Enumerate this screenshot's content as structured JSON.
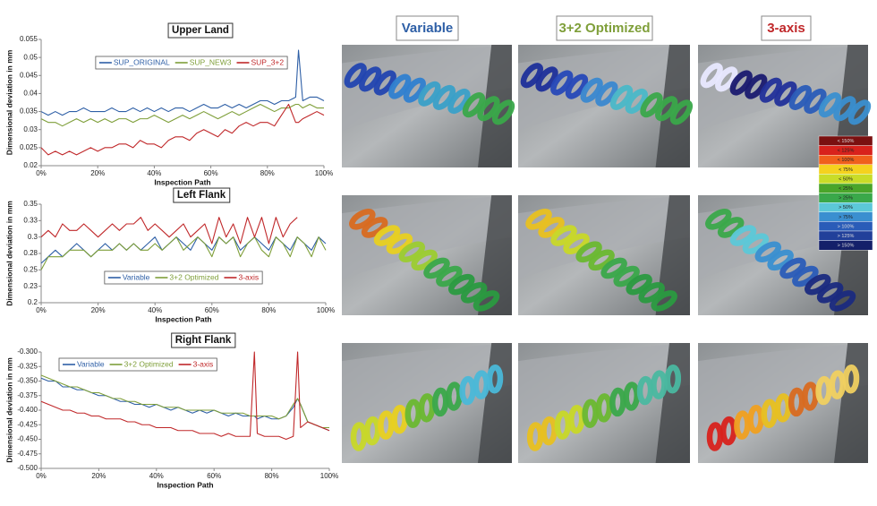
{
  "chart_data": [
    {
      "type": "line",
      "title": "Upper Land",
      "xlabel": "Inspection Path",
      "ylabel": "Dimensional deviation in mm",
      "x": [
        0,
        2.5,
        5,
        7.5,
        10,
        12.5,
        15,
        17.5,
        20,
        22.5,
        25,
        27.5,
        30,
        32.5,
        35,
        37.5,
        40,
        42.5,
        45,
        47.5,
        50,
        52.5,
        55,
        57.5,
        60,
        62.5,
        65,
        67.5,
        70,
        72.5,
        75,
        77.5,
        80,
        82.5,
        85,
        87.5,
        90,
        91,
        92.5,
        95,
        97.5,
        100
      ],
      "series": [
        {
          "name": "SUP_ORIGINAL",
          "color": "#2e5fa6",
          "values": [
            0.035,
            0.034,
            0.035,
            0.034,
            0.035,
            0.035,
            0.036,
            0.035,
            0.035,
            0.035,
            0.036,
            0.035,
            0.035,
            0.036,
            0.035,
            0.036,
            0.035,
            0.036,
            0.035,
            0.036,
            0.036,
            0.035,
            0.036,
            0.037,
            0.036,
            0.036,
            0.037,
            0.036,
            0.037,
            0.036,
            0.037,
            0.038,
            0.038,
            0.037,
            0.038,
            0.038,
            0.039,
            0.052,
            0.038,
            0.039,
            0.039,
            0.038
          ]
        },
        {
          "name": "SUP_NEW3",
          "color": "#7f9f3a",
          "values": [
            0.033,
            0.032,
            0.032,
            0.031,
            0.032,
            0.033,
            0.032,
            0.033,
            0.032,
            0.033,
            0.032,
            0.033,
            0.033,
            0.032,
            0.033,
            0.033,
            0.034,
            0.033,
            0.032,
            0.033,
            0.034,
            0.033,
            0.034,
            0.035,
            0.034,
            0.033,
            0.034,
            0.035,
            0.034,
            0.035,
            0.036,
            0.037,
            0.036,
            0.035,
            0.036,
            0.036,
            0.037,
            0.037,
            0.036,
            0.037,
            0.036,
            0.036
          ]
        },
        {
          "name": "SUP_3+2",
          "color": "#c0282a",
          "values": [
            0.025,
            0.023,
            0.024,
            0.023,
            0.024,
            0.023,
            0.024,
            0.025,
            0.024,
            0.025,
            0.025,
            0.026,
            0.026,
            0.025,
            0.027,
            0.026,
            0.026,
            0.025,
            0.027,
            0.028,
            0.028,
            0.027,
            0.029,
            0.03,
            0.029,
            0.028,
            0.03,
            0.029,
            0.031,
            0.032,
            0.031,
            0.032,
            0.032,
            0.031,
            0.034,
            0.037,
            0.032,
            0.032,
            0.033,
            0.034,
            0.035,
            0.034
          ]
        }
      ],
      "xlim": [
        0,
        100
      ],
      "xticks": [
        {
          "value": 0,
          "label": "0%"
        },
        {
          "value": 20,
          "label": "20%"
        },
        {
          "value": 40,
          "label": "40%"
        },
        {
          "value": 60,
          "label": "60%"
        },
        {
          "value": 80,
          "label": "80%"
        },
        {
          "value": 100,
          "label": "100%"
        }
      ],
      "ylim": [
        0.02,
        0.055
      ],
      "yticks": [
        0.02,
        0.025,
        0.03,
        0.035,
        0.04,
        0.045,
        0.05,
        0.055
      ],
      "legend": "upper center",
      "grid": false
    },
    {
      "type": "line",
      "title": "Left Flank",
      "xlabel": "Inspection Path",
      "ylabel": "Dimensional deviation in mm",
      "x": [
        0,
        2.5,
        5,
        7.5,
        10,
        12.5,
        15,
        17.5,
        20,
        22.5,
        25,
        27.5,
        30,
        32.5,
        35,
        37.5,
        40,
        42.5,
        45,
        47.5,
        50,
        52.5,
        55,
        57.5,
        60,
        62.5,
        65,
        67.5,
        70,
        72.5,
        75,
        77.5,
        80,
        82.5,
        85,
        87.5,
        90,
        92.5,
        95,
        97.5,
        100
      ],
      "series": [
        {
          "name": "Variable",
          "color": "#2e5fa6",
          "values": [
            0.26,
            0.27,
            0.28,
            0.27,
            0.28,
            0.29,
            0.28,
            0.27,
            0.28,
            0.29,
            0.28,
            0.29,
            0.28,
            0.29,
            0.28,
            0.29,
            0.3,
            0.28,
            0.29,
            0.3,
            0.29,
            0.28,
            0.3,
            0.29,
            0.28,
            0.3,
            0.29,
            0.3,
            0.28,
            0.29,
            0.3,
            0.29,
            0.28,
            0.3,
            0.29,
            0.28,
            0.3,
            0.29,
            0.28,
            0.3,
            0.29
          ]
        },
        {
          "name": "3+2 Optimized",
          "color": "#7f9f3a",
          "values": [
            0.25,
            0.27,
            0.27,
            0.27,
            0.28,
            0.28,
            0.28,
            0.27,
            0.28,
            0.28,
            0.28,
            0.29,
            0.28,
            0.29,
            0.28,
            0.28,
            0.29,
            0.28,
            0.29,
            0.3,
            0.28,
            0.29,
            0.3,
            0.29,
            0.27,
            0.3,
            0.29,
            0.3,
            0.27,
            0.29,
            0.3,
            0.28,
            0.27,
            0.3,
            0.29,
            0.27,
            0.3,
            0.29,
            0.27,
            0.3,
            0.28
          ]
        },
        {
          "name": "3-axis",
          "color": "#c0282a",
          "values": [
            0.3,
            0.31,
            0.3,
            0.32,
            0.31,
            0.31,
            0.32,
            0.31,
            0.3,
            0.31,
            0.32,
            0.31,
            0.32,
            0.32,
            0.33,
            0.31,
            0.32,
            0.31,
            0.3,
            0.31,
            0.32,
            0.3,
            0.31,
            0.32,
            0.29,
            0.33,
            0.3,
            0.32,
            0.29,
            0.33,
            0.3,
            0.33,
            0.29,
            0.33,
            0.3,
            0.32,
            0.33,
            null,
            null,
            null,
            null
          ]
        }
      ],
      "xlim": [
        0,
        100
      ],
      "xticks": [
        {
          "value": 0,
          "label": "0%"
        },
        {
          "value": 20,
          "label": "20%"
        },
        {
          "value": 40,
          "label": "40%"
        },
        {
          "value": 60,
          "label": "60%"
        },
        {
          "value": 80,
          "label": "80%"
        },
        {
          "value": 100,
          "label": "100%"
        }
      ],
      "ylim": [
        0.2,
        0.35
      ],
      "yticks": [
        0.2,
        {
          "value": 0.225,
          "label": "0.23"
        },
        0.25,
        {
          "value": 0.275,
          "label": "0.28"
        },
        0.3,
        {
          "value": 0.325,
          "label": "0.33"
        },
        0.35
      ],
      "legend": "lower center",
      "grid": false
    },
    {
      "type": "line",
      "title": "Right Flank",
      "xlabel": "Inspection Path",
      "ylabel": "Dimensional deviation in mm",
      "x": [
        0,
        2.5,
        5,
        7.5,
        10,
        12.5,
        15,
        17.5,
        20,
        22.5,
        25,
        27.5,
        30,
        32.5,
        35,
        37.5,
        40,
        42.5,
        45,
        47.5,
        50,
        52.5,
        55,
        57.5,
        60,
        62.5,
        65,
        67.5,
        70,
        72.5,
        74,
        75,
        77.5,
        80,
        82.5,
        85,
        87.5,
        89,
        90,
        92.5,
        95,
        97.5,
        100
      ],
      "series": [
        {
          "name": "Variable",
          "color": "#2e5fa6",
          "values": [
            -0.345,
            -0.35,
            -0.35,
            -0.36,
            -0.36,
            -0.365,
            -0.365,
            -0.37,
            -0.375,
            -0.375,
            -0.38,
            -0.385,
            -0.385,
            -0.39,
            -0.39,
            -0.395,
            -0.39,
            -0.395,
            -0.4,
            -0.395,
            -0.4,
            -0.405,
            -0.4,
            -0.405,
            -0.4,
            -0.405,
            -0.41,
            -0.405,
            -0.41,
            -0.41,
            -0.41,
            -0.415,
            -0.41,
            -0.415,
            -0.415,
            -0.41,
            -0.395,
            -0.38,
            -0.39,
            -0.42,
            -0.425,
            -0.43,
            -0.435
          ]
        },
        {
          "name": "3+2 Optimized",
          "color": "#7f9f3a",
          "values": [
            -0.34,
            -0.345,
            -0.35,
            -0.355,
            -0.36,
            -0.36,
            -0.365,
            -0.37,
            -0.37,
            -0.375,
            -0.38,
            -0.38,
            -0.385,
            -0.385,
            -0.39,
            -0.39,
            -0.39,
            -0.395,
            -0.395,
            -0.395,
            -0.4,
            -0.4,
            -0.4,
            -0.4,
            -0.4,
            -0.405,
            -0.405,
            -0.405,
            -0.405,
            -0.41,
            -0.41,
            -0.41,
            -0.41,
            -0.41,
            -0.415,
            -0.41,
            -0.39,
            -0.38,
            -0.39,
            -0.42,
            -0.425,
            -0.43,
            -0.43
          ]
        },
        {
          "name": "3-axis",
          "color": "#c0282a",
          "values": [
            -0.385,
            -0.39,
            -0.395,
            -0.4,
            -0.4,
            -0.405,
            -0.405,
            -0.41,
            -0.41,
            -0.415,
            -0.415,
            -0.415,
            -0.42,
            -0.42,
            -0.425,
            -0.425,
            -0.43,
            -0.43,
            -0.43,
            -0.435,
            -0.435,
            -0.435,
            -0.44,
            -0.44,
            -0.44,
            -0.445,
            -0.44,
            -0.445,
            -0.445,
            -0.445,
            -0.3,
            -0.44,
            -0.445,
            -0.445,
            -0.445,
            -0.45,
            -0.445,
            -0.3,
            -0.43,
            -0.42,
            -0.425,
            -0.43,
            -0.435
          ]
        }
      ],
      "xlim": [
        0,
        100
      ],
      "xticks": [
        {
          "value": 0,
          "label": "0%"
        },
        {
          "value": 20,
          "label": "20%"
        },
        {
          "value": 40,
          "label": "40%"
        },
        {
          "value": 60,
          "label": "60%"
        },
        {
          "value": 80,
          "label": "80%"
        },
        {
          "value": 100,
          "label": "100%"
        }
      ],
      "ylim": [
        -0.5,
        -0.3
      ],
      "yticks": [
        {
          "value": -0.5,
          "label": "-0.500"
        },
        -0.475,
        {
          "value": -0.45,
          "label": "-0.450"
        },
        -0.425,
        {
          "value": -0.4,
          "label": "-0.400"
        },
        -0.375,
        {
          "value": -0.35,
          "label": "-0.350"
        },
        -0.325,
        {
          "value": -0.3,
          "label": "-0.300"
        }
      ],
      "legend": "upper left",
      "grid": false
    }
  ],
  "renders": {
    "columns": [
      "Variable",
      "3+2 Optimized",
      "3-axis"
    ],
    "color_scale": [
      {
        "label": "< 150%",
        "color": "#7a1010"
      },
      {
        "label": "< 125%",
        "color": "#d8221c"
      },
      {
        "label": "< 100%",
        "color": "#f0601c"
      },
      {
        "label": "< 75%",
        "color": "#f5d21e"
      },
      {
        "label": "< 50%",
        "color": "#c9dc28"
      },
      {
        "label": "< 25%",
        "color": "#4aa52a"
      },
      {
        "label": "> 25%",
        "color": "#3aa84a"
      },
      {
        "label": "> 50%",
        "color": "#5cc8d8"
      },
      {
        "label": "> 75%",
        "color": "#3a8fd0"
      },
      {
        "label": "> 100%",
        "color": "#2a5cb8"
      },
      {
        "label": "> 125%",
        "color": "#22409a"
      },
      {
        "label": "> 150%",
        "color": "#14206a"
      }
    ]
  }
}
